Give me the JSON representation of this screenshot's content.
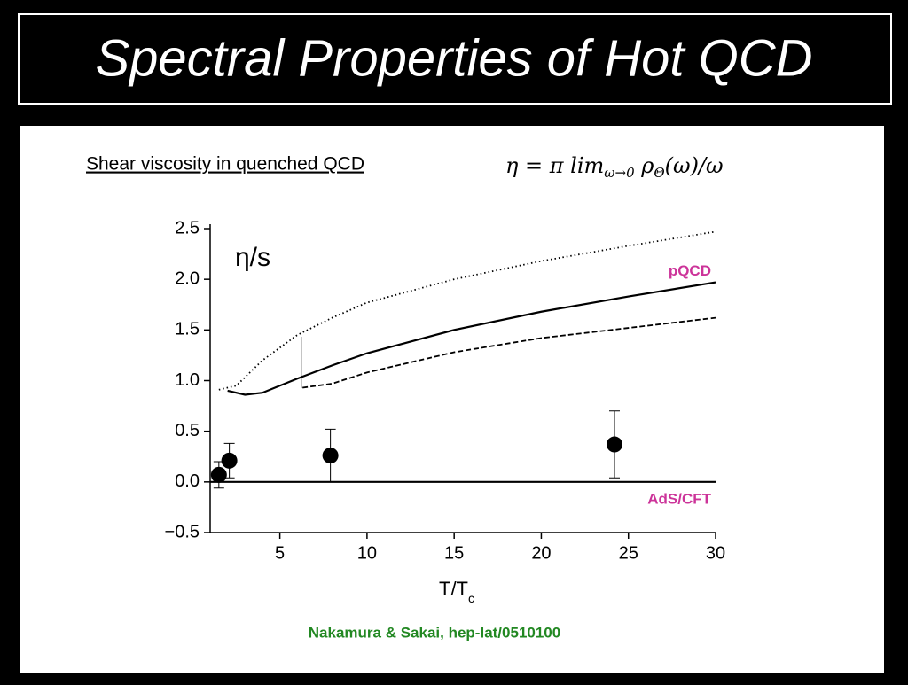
{
  "title": "Spectral Properties of Hot QCD",
  "subtitle": "Shear viscosity in quenched QCD",
  "formula": [
    "η = π  lim",
    "ω→0",
    "  ρ",
    "Θ",
    "(ω)/ω"
  ],
  "citation": "Nakamura & Sakai,  hep-lat/0510100",
  "chart_data": {
    "type": "scatter",
    "ylabel": "η/s",
    "xlabel": [
      "T/T",
      "c"
    ],
    "xlim": [
      1,
      30
    ],
    "xticks": [
      5,
      10,
      15,
      20,
      25,
      30
    ],
    "ylim": [
      -0.5,
      2.5
    ],
    "yticks": [
      {
        "value": -0.5,
        "label": "−0.5"
      },
      {
        "value": 0,
        "label": "0.0"
      },
      0.5,
      {
        "value": 1,
        "label": "1.0"
      },
      1.5,
      {
        "value": 2,
        "label": "2.0"
      },
      2.5
    ],
    "x": [
      1.5,
      2.1,
      7.9,
      24.2
    ],
    "values": [
      0.07,
      0.21,
      0.26,
      0.37
    ],
    "errors": [
      0.13,
      0.17,
      0.26,
      0.33
    ],
    "color": "#000000",
    "series": [
      {
        "style": "dotted",
        "color": "#000000",
        "x": [
          1.5,
          2.5,
          4,
          6,
          8,
          10,
          15,
          20,
          25,
          30
        ],
        "values": [
          0.91,
          0.95,
          1.2,
          1.45,
          1.62,
          1.77,
          2.0,
          2.18,
          2.33,
          2.47
        ]
      },
      {
        "name": "pQCD",
        "name_color": "#cc3399",
        "style": "solid",
        "color": "#000000",
        "x": [
          2,
          3,
          4,
          6,
          8,
          10,
          15,
          20,
          25,
          30
        ],
        "values": [
          0.9,
          0.86,
          0.88,
          1.02,
          1.15,
          1.27,
          1.5,
          1.68,
          1.83,
          1.97
        ]
      },
      {
        "style": "dashed",
        "color": "#000000",
        "x": [
          6.3,
          8,
          10,
          15,
          20,
          25,
          30
        ],
        "values": [
          0.93,
          0.97,
          1.08,
          1.28,
          1.42,
          1.52,
          1.62
        ]
      },
      {
        "name": "AdS/CFT",
        "name_color": "#cc3399",
        "style": "solid",
        "color": "#000000",
        "x": [
          1,
          30
        ],
        "values": [
          0,
          0
        ]
      }
    ]
  }
}
